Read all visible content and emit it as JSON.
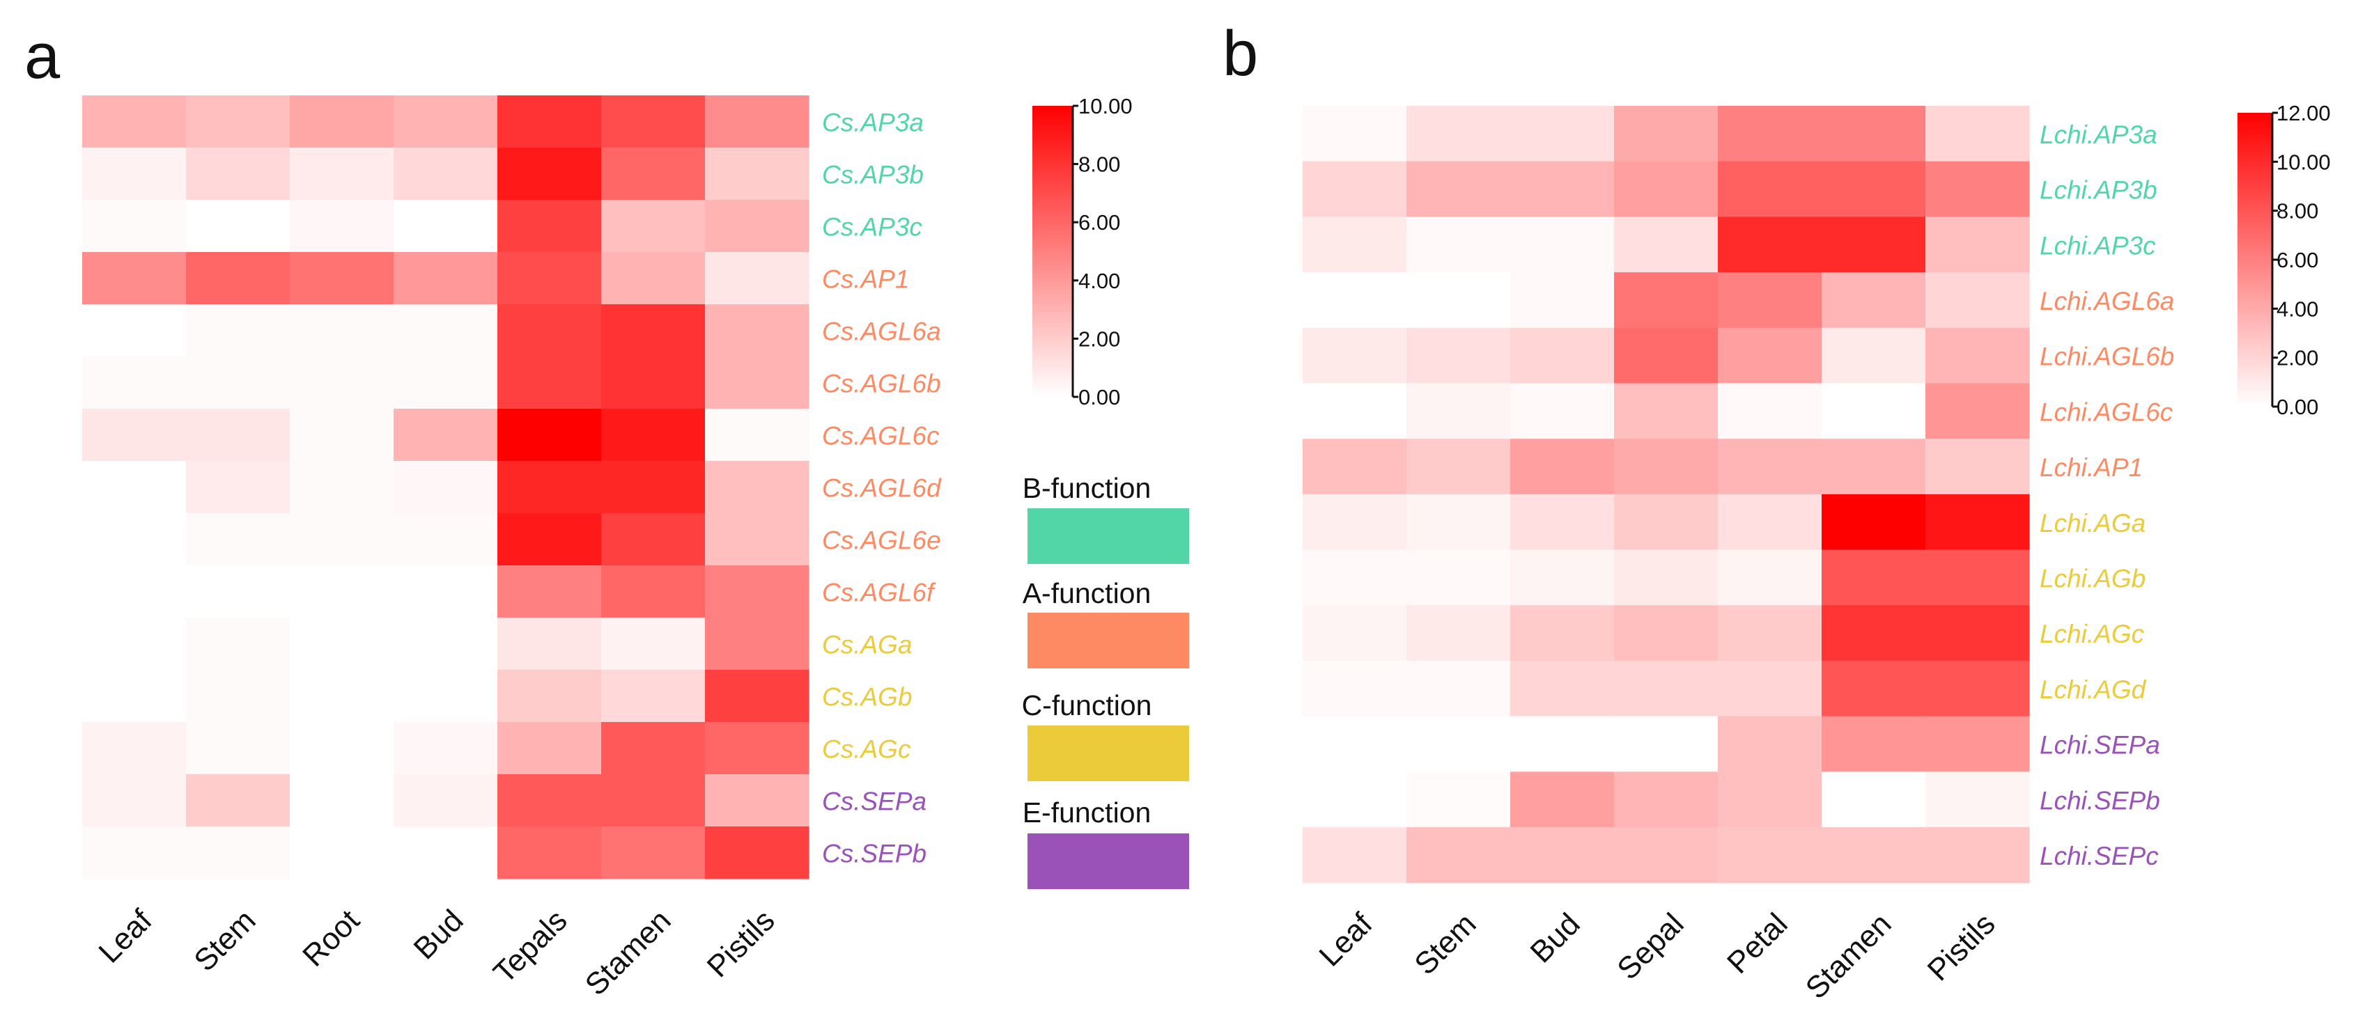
{
  "colors": {
    "B-function": "#52d6a8",
    "A-function": "#fd8a62",
    "C-function": "#eccb3b",
    "E-function": "#9a52b8",
    "heat_low": "#ffffff",
    "heat_high": "#ff0000"
  },
  "chart_data": [
    {
      "type": "heatmap",
      "panel_label": "a",
      "columns": [
        "Leaf",
        "Stem",
        "Root",
        "Bud",
        "Tepals",
        "Stamen",
        "Pistils"
      ],
      "rows": [
        {
          "name": "Cs.AP3a",
          "function": "B-function",
          "values": [
            3.0,
            2.5,
            3.5,
            3.0,
            8.0,
            7.0,
            4.5
          ]
        },
        {
          "name": "Cs.AP3b",
          "function": "B-function",
          "values": [
            0.5,
            1.5,
            0.8,
            1.5,
            9.0,
            6.0,
            2.0
          ]
        },
        {
          "name": "Cs.AP3c",
          "function": "B-function",
          "values": [
            0.2,
            0.0,
            0.3,
            0.0,
            7.5,
            2.5,
            3.0
          ]
        },
        {
          "name": "Cs.AP1",
          "function": "A-function",
          "values": [
            4.5,
            6.0,
            5.5,
            4.0,
            7.0,
            3.0,
            1.0
          ]
        },
        {
          "name": "Cs.AGL6a",
          "function": "A-function",
          "values": [
            0.0,
            0.2,
            0.2,
            0.2,
            7.5,
            8.0,
            3.0
          ]
        },
        {
          "name": "Cs.AGL6b",
          "function": "A-function",
          "values": [
            0.2,
            0.2,
            0.2,
            0.2,
            7.5,
            8.0,
            3.0
          ]
        },
        {
          "name": "Cs.AGL6c",
          "function": "A-function",
          "values": [
            1.0,
            1.0,
            0.2,
            3.0,
            10.0,
            9.0,
            0.2
          ]
        },
        {
          "name": "Cs.AGL6d",
          "function": "A-function",
          "values": [
            0.0,
            0.8,
            0.2,
            0.3,
            8.5,
            8.5,
            2.5
          ]
        },
        {
          "name": "Cs.AGL6e",
          "function": "A-function",
          "values": [
            0.0,
            0.2,
            0.2,
            0.2,
            9.0,
            7.5,
            2.5
          ]
        },
        {
          "name": "Cs.AGL6f",
          "function": "A-function",
          "values": [
            0.0,
            0.0,
            0.0,
            0.0,
            5.0,
            6.0,
            5.0
          ]
        },
        {
          "name": "Cs.AGa",
          "function": "C-function",
          "values": [
            0.0,
            0.2,
            0.0,
            0.0,
            1.0,
            0.5,
            5.0
          ]
        },
        {
          "name": "Cs.AGb",
          "function": "C-function",
          "values": [
            0.0,
            0.2,
            0.0,
            0.0,
            2.0,
            1.5,
            7.5
          ]
        },
        {
          "name": "Cs.AGc",
          "function": "C-function",
          "values": [
            0.5,
            0.2,
            0.0,
            0.3,
            3.0,
            6.5,
            6.0
          ]
        },
        {
          "name": "Cs.SEPa",
          "function": "E-function",
          "values": [
            0.5,
            2.0,
            0.0,
            0.5,
            6.5,
            6.5,
            3.0
          ]
        },
        {
          "name": "Cs.SEPb",
          "function": "E-function",
          "values": [
            0.2,
            0.2,
            0.0,
            0.0,
            6.0,
            5.5,
            7.5
          ]
        }
      ],
      "colorbar": {
        "min": 0,
        "max": 10,
        "ticks": [
          "0.00",
          "2.00",
          "4.00",
          "6.00",
          "8.00",
          "10.00"
        ]
      }
    },
    {
      "type": "heatmap",
      "panel_label": "b",
      "columns": [
        "Leaf",
        "Stem",
        "Bud",
        "Sepal",
        "Petal",
        "Stamen",
        "Pistils"
      ],
      "rows": [
        {
          "name": "Lchi.AP3a",
          "function": "B-function",
          "values": [
            0.3,
            1.5,
            1.5,
            4.0,
            6.0,
            6.0,
            2.0
          ]
        },
        {
          "name": "Lchi.AP3b",
          "function": "B-function",
          "values": [
            2.0,
            3.5,
            3.5,
            4.5,
            7.5,
            7.5,
            6.0
          ]
        },
        {
          "name": "Lchi.AP3c",
          "function": "B-function",
          "values": [
            1.0,
            0.3,
            0.3,
            1.5,
            10.0,
            10.0,
            3.0
          ]
        },
        {
          "name": "Lchi.AGL6a",
          "function": "A-function",
          "values": [
            0.0,
            0.0,
            0.3,
            6.5,
            6.0,
            3.5,
            2.0
          ]
        },
        {
          "name": "Lchi.AGL6b",
          "function": "A-function",
          "values": [
            1.0,
            1.5,
            2.0,
            7.0,
            4.5,
            1.0,
            3.5
          ]
        },
        {
          "name": "Lchi.AGL6c",
          "function": "A-function",
          "values": [
            0.0,
            0.5,
            0.3,
            3.0,
            0.3,
            0.0,
            5.0
          ]
        },
        {
          "name": "Lchi.AP1",
          "function": "A-function",
          "values": [
            3.0,
            2.5,
            4.5,
            4.0,
            3.5,
            3.5,
            2.5
          ]
        },
        {
          "name": "Lchi.AGa",
          "function": "C-function",
          "values": [
            0.8,
            0.5,
            1.5,
            2.5,
            1.5,
            12.0,
            11.0
          ]
        },
        {
          "name": "Lchi.AGb",
          "function": "C-function",
          "values": [
            0.3,
            0.3,
            0.5,
            1.0,
            0.5,
            8.0,
            8.0
          ]
        },
        {
          "name": "Lchi.AGc",
          "function": "C-function",
          "values": [
            0.5,
            1.0,
            2.5,
            3.0,
            2.5,
            9.5,
            9.5
          ]
        },
        {
          "name": "Lchi.AGd",
          "function": "C-function",
          "values": [
            0.3,
            0.3,
            2.0,
            2.0,
            2.0,
            8.0,
            8.0
          ]
        },
        {
          "name": "Lchi.SEPa",
          "function": "E-function",
          "values": [
            0.0,
            0.0,
            0.0,
            0.0,
            3.0,
            5.0,
            5.0
          ]
        },
        {
          "name": "Lchi.SEPb",
          "function": "E-function",
          "values": [
            0.0,
            0.2,
            4.5,
            3.5,
            3.0,
            0.0,
            0.5
          ]
        },
        {
          "name": "Lchi.SEPc",
          "function": "E-function",
          "values": [
            1.5,
            3.0,
            3.0,
            3.0,
            2.8,
            2.8,
            2.8
          ]
        }
      ],
      "colorbar": {
        "min": 0,
        "max": 12,
        "ticks": [
          "0.00",
          "2.00",
          "4.00",
          "6.00",
          "8.00",
          "10.00",
          "12.00"
        ]
      }
    }
  ],
  "legend": [
    {
      "label": "B-function",
      "key": "B-function"
    },
    {
      "label": "A-function",
      "key": "A-function"
    },
    {
      "label": "C-function",
      "key": "C-function"
    },
    {
      "label": "E-function",
      "key": "E-function"
    }
  ]
}
